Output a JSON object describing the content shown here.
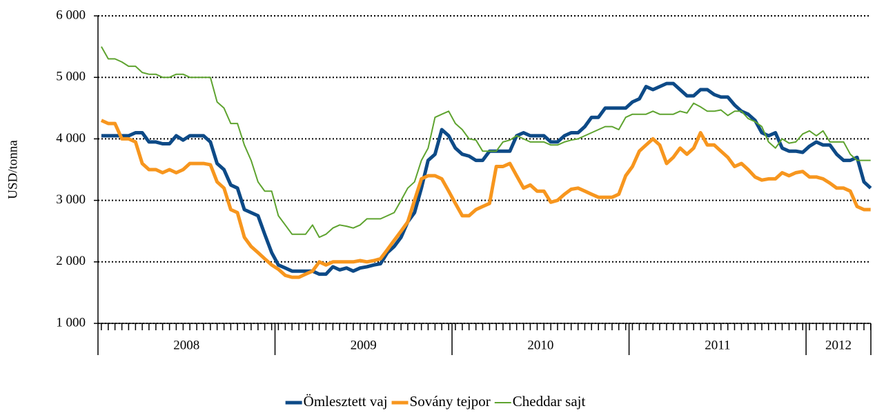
{
  "chart_data": {
    "type": "line",
    "y_label": "USD/tonna",
    "ylim": [
      1000,
      6000
    ],
    "yticks": [
      {
        "value": 1000,
        "label": "1 000"
      },
      {
        "value": 2000,
        "label": "2 000"
      },
      {
        "value": 3000,
        "label": "3 000"
      },
      {
        "value": 4000,
        "label": "4 000"
      },
      {
        "value": 5000,
        "label": "5 000"
      },
      {
        "value": 6000,
        "label": "6 000"
      }
    ],
    "xlim": [
      2008,
      2012.366
    ],
    "xticks": [
      {
        "value": 2008,
        "label": "2008"
      },
      {
        "value": 2009,
        "label": "2009"
      },
      {
        "value": 2010,
        "label": "2010"
      },
      {
        "value": 2011,
        "label": "2011"
      },
      {
        "value": 2012,
        "label": "2012"
      }
    ],
    "grid": true,
    "legend": "bottom",
    "x": [
      2008.019,
      2008.058,
      2008.096,
      2008.135,
      2008.173,
      2008.212,
      2008.25,
      2008.288,
      2008.327,
      2008.365,
      2008.404,
      2008.442,
      2008.481,
      2008.519,
      2008.558,
      2008.596,
      2008.635,
      2008.673,
      2008.712,
      2008.75,
      2008.788,
      2008.827,
      2008.865,
      2008.904,
      2008.942,
      2008.981,
      2009.019,
      2009.058,
      2009.096,
      2009.135,
      2009.173,
      2009.212,
      2009.25,
      2009.288,
      2009.327,
      2009.365,
      2009.404,
      2009.442,
      2009.481,
      2009.519,
      2009.558,
      2009.596,
      2009.635,
      2009.673,
      2009.712,
      2009.75,
      2009.788,
      2009.827,
      2009.865,
      2009.904,
      2009.942,
      2009.981,
      2010.019,
      2010.058,
      2010.096,
      2010.135,
      2010.173,
      2010.212,
      2010.25,
      2010.288,
      2010.327,
      2010.365,
      2010.404,
      2010.442,
      2010.481,
      2010.519,
      2010.558,
      2010.596,
      2010.635,
      2010.673,
      2010.712,
      2010.75,
      2010.788,
      2010.827,
      2010.865,
      2010.904,
      2010.942,
      2010.981,
      2011.019,
      2011.058,
      2011.096,
      2011.135,
      2011.173,
      2011.212,
      2011.25,
      2011.288,
      2011.327,
      2011.365,
      2011.404,
      2011.442,
      2011.481,
      2011.519,
      2011.558,
      2011.596,
      2011.635,
      2011.673,
      2011.712,
      2011.75,
      2011.788,
      2011.827,
      2011.865,
      2011.904,
      2011.942,
      2011.981,
      2012.019,
      2012.058,
      2012.096,
      2012.135,
      2012.173,
      2012.212,
      2012.25,
      2012.288,
      2012.327,
      2012.365
    ],
    "series": [
      {
        "name": "Ömlesztett vaj",
        "color": "#0d4a87",
        "values": [
          4050,
          4050,
          4050,
          4050,
          4050,
          4100,
          4100,
          3950,
          3950,
          3920,
          3920,
          4050,
          3980,
          4050,
          4050,
          4050,
          3950,
          3600,
          3500,
          3250,
          3200,
          2850,
          2800,
          2750,
          2450,
          2150,
          1950,
          1900,
          1850,
          1850,
          1850,
          1850,
          1800,
          1800,
          1920,
          1870,
          1900,
          1850,
          1900,
          1920,
          1950,
          1970,
          2150,
          2250,
          2400,
          2650,
          2800,
          3200,
          3650,
          3750,
          4150,
          4050,
          3850,
          3750,
          3720,
          3650,
          3650,
          3800,
          3800,
          3800,
          3800,
          4050,
          4100,
          4050,
          4050,
          4050,
          3950,
          3950,
          4050,
          4100,
          4100,
          4200,
          4350,
          4350,
          4500,
          4500,
          4500,
          4500,
          4600,
          4650,
          4850,
          4800,
          4850,
          4900,
          4900,
          4800,
          4700,
          4700,
          4800,
          4800,
          4720,
          4680,
          4680,
          4550,
          4450,
          4400,
          4300,
          4100,
          4050,
          4100,
          3850,
          3800,
          3800,
          3780,
          3880,
          3950,
          3900,
          3900,
          3750,
          3650,
          3650,
          3700,
          3300,
          3200
        ]
      },
      {
        "name": "Sovány tejpor",
        "color": "#f7961e",
        "values": [
          4300,
          4250,
          4250,
          4000,
          4000,
          3950,
          3600,
          3500,
          3500,
          3450,
          3500,
          3450,
          3500,
          3600,
          3600,
          3600,
          3580,
          3300,
          3200,
          2850,
          2800,
          2400,
          2250,
          2150,
          2050,
          1950,
          1880,
          1780,
          1750,
          1750,
          1800,
          1850,
          2000,
          1950,
          2000,
          2000,
          2000,
          2000,
          2020,
          2000,
          2020,
          2050,
          2200,
          2350,
          2500,
          2650,
          3000,
          3350,
          3400,
          3400,
          3350,
          3150,
          2950,
          2750,
          2750,
          2850,
          2900,
          2950,
          3550,
          3550,
          3600,
          3400,
          3200,
          3250,
          3150,
          3150,
          2970,
          3000,
          3100,
          3180,
          3200,
          3150,
          3100,
          3050,
          3050,
          3050,
          3100,
          3400,
          3550,
          3800,
          3900,
          4000,
          3900,
          3600,
          3700,
          3850,
          3750,
          3850,
          4100,
          3900,
          3900,
          3800,
          3700,
          3550,
          3600,
          3500,
          3380,
          3330,
          3350,
          3350,
          3450,
          3400,
          3450,
          3470,
          3380,
          3380,
          3350,
          3280,
          3200,
          3200,
          3150,
          2900,
          2850,
          2850
        ]
      },
      {
        "name": "Cheddar sajt",
        "color": "#5ea32f",
        "values": [
          5500,
          5300,
          5300,
          5250,
          5180,
          5180,
          5080,
          5050,
          5050,
          5000,
          5000,
          5050,
          5050,
          5000,
          5000,
          5000,
          5000,
          4600,
          4500,
          4250,
          4250,
          3900,
          3650,
          3300,
          3150,
          3150,
          2750,
          2600,
          2450,
          2450,
          2450,
          2600,
          2400,
          2450,
          2550,
          2600,
          2580,
          2550,
          2600,
          2700,
          2700,
          2700,
          2750,
          2800,
          3000,
          3200,
          3300,
          3650,
          3850,
          4350,
          4400,
          4450,
          4250,
          4150,
          4000,
          3980,
          3800,
          3800,
          3800,
          3950,
          3980,
          4050,
          4000,
          3950,
          3950,
          3950,
          3900,
          3900,
          3950,
          3980,
          4000,
          4050,
          4100,
          4150,
          4200,
          4200,
          4150,
          4350,
          4400,
          4400,
          4400,
          4450,
          4400,
          4400,
          4400,
          4450,
          4420,
          4580,
          4520,
          4450,
          4450,
          4470,
          4380,
          4450,
          4450,
          4330,
          4280,
          4200,
          3950,
          3850,
          4000,
          3930,
          3950,
          4080,
          4130,
          4050,
          4130,
          3950,
          3950,
          3950,
          3750,
          3650,
          3650,
          3650
        ]
      }
    ]
  }
}
